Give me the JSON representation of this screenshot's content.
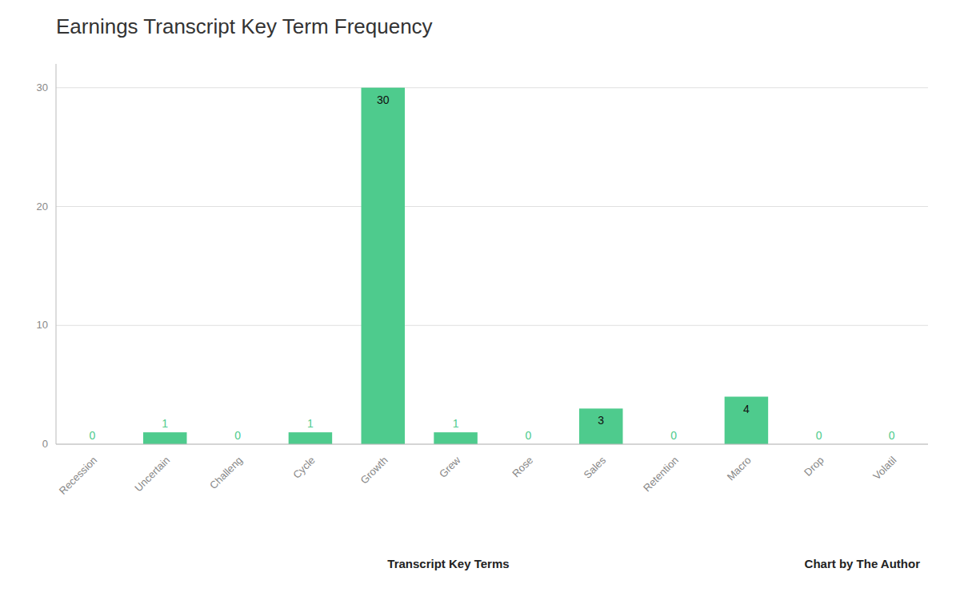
{
  "chart_data": {
    "type": "bar",
    "title": "Earnings Transcript Key Term Frequency",
    "categories": [
      "Recession",
      "Uncertain",
      "Challeng",
      "Cycle",
      "Growth",
      "Grew",
      "Rose",
      "Sales",
      "Retention",
      "Macro",
      "Drop",
      "Volatil"
    ],
    "values": [
      0,
      1,
      0,
      1,
      30,
      1,
      0,
      3,
      0,
      4,
      0,
      0
    ],
    "color": "#4ECB8D",
    "xlabel": "Transcript Key Terms",
    "annotations": [
      "Chart by The Author"
    ],
    "ylim": [
      0,
      32
    ],
    "yticks": [
      0,
      10,
      20,
      30
    ],
    "grid": true,
    "data_labels": true
  }
}
